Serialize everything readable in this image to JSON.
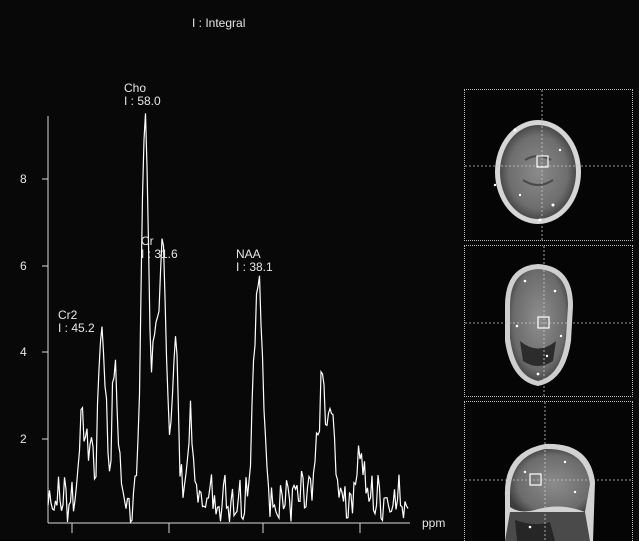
{
  "legend": "I : Integral",
  "x_unit": "ppm",
  "peaks": [
    {
      "name": "Cho",
      "integral": "I : 58.0"
    },
    {
      "name": "Cr",
      "integral": "I : 31.6"
    },
    {
      "name": "NAA",
      "integral": "I : 38.1"
    },
    {
      "name": "Cr2",
      "integral": "I : 45.2"
    }
  ],
  "y_ticks": [
    "8",
    "6",
    "4",
    "2"
  ],
  "viewports": [
    "axial",
    "coronal",
    "sagittal"
  ],
  "colors": {
    "background": "#000000",
    "trace": "#ffffff",
    "text": "#e6e6e6",
    "crosshair": "#c8c8c8"
  }
}
